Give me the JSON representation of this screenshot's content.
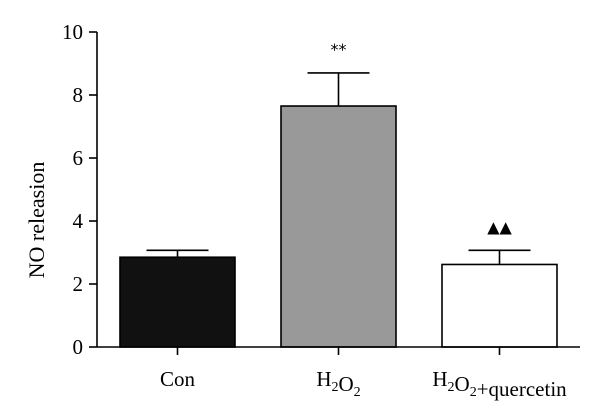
{
  "chart_data": {
    "type": "bar",
    "title": "",
    "xlabel": "",
    "ylabel": "NO releasion",
    "ylim": [
      0,
      10
    ],
    "yticks": [
      0,
      2,
      4,
      6,
      8,
      10
    ],
    "grid": false,
    "categories": [
      {
        "label": "Con",
        "value": 2.85,
        "error": 0.22,
        "color": "#111111",
        "annotation": ""
      },
      {
        "label": "H2O2",
        "value": 7.65,
        "error": 1.05,
        "color": "#999999",
        "annotation": "**"
      },
      {
        "label": "H2O2+quercetin",
        "value": 2.62,
        "error": 0.45,
        "color": "#ffffff",
        "annotation": "▲▲"
      }
    ]
  }
}
